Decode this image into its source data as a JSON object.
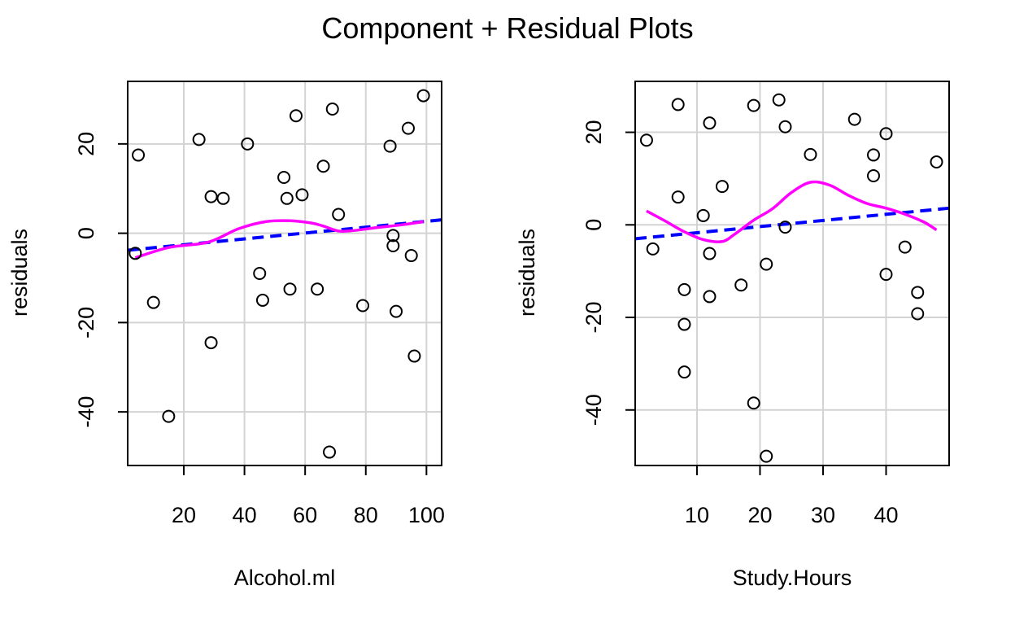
{
  "title": "Component + Residual Plots",
  "colors": {
    "points": "#000000",
    "dashed_fit": "#0000FF",
    "smooth": "#FF00FF",
    "grid": "#D3D3D3"
  },
  "chart_data": [
    {
      "type": "scatter",
      "xlabel": "Alcohol.ml",
      "ylabel": "residuals",
      "xlim": [
        1.5,
        105
      ],
      "ylim": [
        -52,
        34
      ],
      "xticks": [
        20,
        40,
        60,
        80,
        100
      ],
      "yticks": [
        -40,
        -20,
        0,
        20
      ],
      "grid": true,
      "points": [
        [
          4,
          -4.5
        ],
        [
          5,
          17.5
        ],
        [
          10,
          -15.5
        ],
        [
          15,
          -41
        ],
        [
          25,
          21
        ],
        [
          29,
          8.2
        ],
        [
          29,
          -24.5
        ],
        [
          33,
          7.8
        ],
        [
          41,
          20
        ],
        [
          45,
          -9
        ],
        [
          46,
          -15
        ],
        [
          53,
          12.5
        ],
        [
          54,
          7.8
        ],
        [
          55,
          -12.5
        ],
        [
          57,
          26.3
        ],
        [
          59,
          8.6
        ],
        [
          64,
          -12.5
        ],
        [
          66,
          15
        ],
        [
          68,
          -49
        ],
        [
          69,
          27.8
        ],
        [
          71,
          4.2
        ],
        [
          79,
          -16.2
        ],
        [
          88,
          19.5
        ],
        [
          89,
          -0.5
        ],
        [
          89,
          -2.8
        ],
        [
          90,
          -17.5
        ],
        [
          94,
          23.5
        ],
        [
          95,
          -5
        ],
        [
          96,
          -27.5
        ],
        [
          99,
          30.8
        ]
      ],
      "fit_line": [
        [
          1.5,
          -3.8
        ],
        [
          105,
          3.0
        ]
      ],
      "smooth": [
        [
          4,
          -5.5
        ],
        [
          15,
          -3.2
        ],
        [
          28,
          -2.0
        ],
        [
          38,
          1.0
        ],
        [
          47,
          2.6
        ],
        [
          55,
          2.8
        ],
        [
          62,
          2.3
        ],
        [
          66,
          1.6
        ],
        [
          71,
          0.5
        ],
        [
          76,
          0.6
        ],
        [
          84,
          1.3
        ],
        [
          92,
          1.9
        ],
        [
          99,
          2.6
        ]
      ]
    },
    {
      "type": "scatter",
      "xlabel": "Study.Hours",
      "ylabel": "residuals",
      "xlim": [
        0.2,
        50
      ],
      "ylim": [
        -52,
        31
      ],
      "xticks": [
        10,
        20,
        30,
        40
      ],
      "yticks": [
        -40,
        -20,
        0,
        20
      ],
      "grid": true,
      "points": [
        [
          2,
          18.3
        ],
        [
          3,
          -5.2
        ],
        [
          7,
          26
        ],
        [
          7,
          6
        ],
        [
          8,
          -14
        ],
        [
          8,
          -21.5
        ],
        [
          8,
          -31.8
        ],
        [
          11,
          2
        ],
        [
          12,
          22
        ],
        [
          12,
          -6.2
        ],
        [
          12,
          -15.5
        ],
        [
          14,
          8.3
        ],
        [
          17,
          -13
        ],
        [
          19,
          25.8
        ],
        [
          19,
          -38.5
        ],
        [
          21,
          -8.5
        ],
        [
          21,
          -50
        ],
        [
          23,
          27
        ],
        [
          24,
          21.2
        ],
        [
          24,
          -0.5
        ],
        [
          28,
          15.2
        ],
        [
          35,
          22.8
        ],
        [
          38,
          15.1
        ],
        [
          38,
          10.6
        ],
        [
          40,
          19.7
        ],
        [
          40,
          -10.7
        ],
        [
          43,
          -4.8
        ],
        [
          45,
          -14.6
        ],
        [
          45,
          -19.2
        ],
        [
          48,
          13.6
        ]
      ],
      "fit_line": [
        [
          0.2,
          -3.0
        ],
        [
          50,
          3.6
        ]
      ],
      "smooth": [
        [
          2,
          3.0
        ],
        [
          5,
          0.8
        ],
        [
          8,
          -1.5
        ],
        [
          11,
          -3.2
        ],
        [
          14,
          -3.6
        ],
        [
          16,
          -2.0
        ],
        [
          19,
          1.0
        ],
        [
          22,
          3.5
        ],
        [
          25,
          7.0
        ],
        [
          28,
          9.2
        ],
        [
          31,
          8.6
        ],
        [
          34,
          6.4
        ],
        [
          37,
          4.6
        ],
        [
          40,
          3.6
        ],
        [
          43,
          2.3
        ],
        [
          46,
          0.6
        ],
        [
          48,
          -1.1
        ]
      ]
    }
  ]
}
